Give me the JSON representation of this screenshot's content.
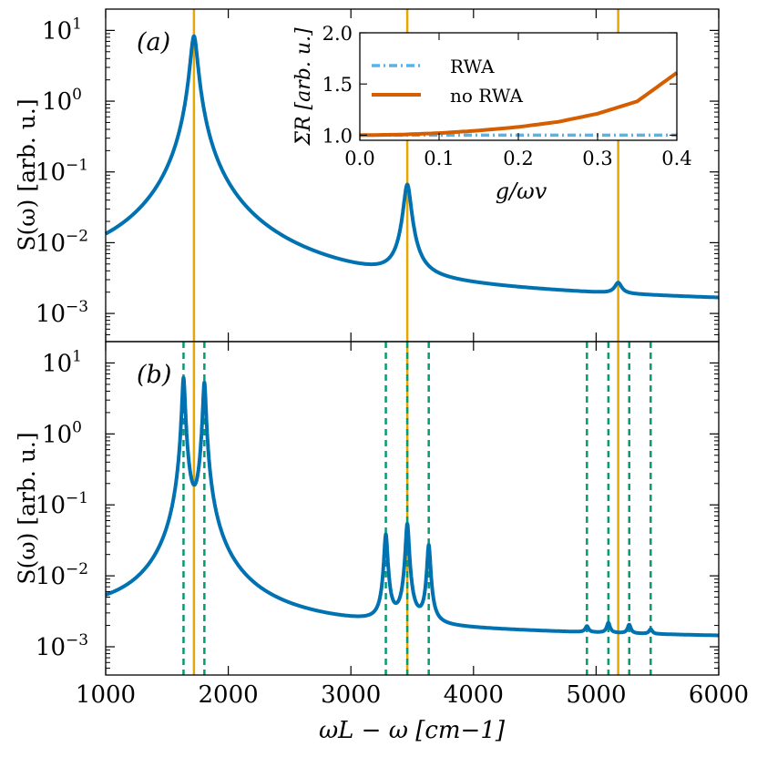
{
  "chart_data": [
    {
      "type": "line",
      "panel_label": "(a)",
      "ylabel": "S(ω) [arb. u.]",
      "yscale": "log",
      "ylim": [
        0.0004,
        20
      ],
      "xlim": [
        1000,
        6000
      ],
      "ytick_labels": [
        {
          "base": "10",
          "exp": "1",
          "value": 10
        },
        {
          "base": "10",
          "exp": "0",
          "value": 1
        },
        {
          "base": "10",
          "exp": "−1",
          "value": 0.1
        },
        {
          "base": "10",
          "exp": "−2",
          "value": 0.01
        },
        {
          "base": "10",
          "exp": "−3",
          "value": 0.001
        }
      ],
      "vertical_lines": {
        "color": "#e6a700",
        "style": "solid",
        "x": [
          1720,
          3460,
          5180
        ]
      },
      "series": [
        {
          "name": "S(ω)",
          "color": "#0072b2",
          "baseline": 0.0016,
          "peaks": [
            {
              "center": 1720,
              "amplitude": 8.3,
              "width": 26
            },
            {
              "center": 3460,
              "amplitude": 0.063,
              "width": 28
            },
            {
              "center": 5180,
              "amplitude": 0.0008,
              "width": 32
            }
          ]
        }
      ]
    },
    {
      "type": "line",
      "panel_label": "(b)",
      "ylabel": "S(ω) [arb. u.]",
      "xlabel": "ωL − ω [cm−1]",
      "yscale": "log",
      "ylim": [
        0.0004,
        20
      ],
      "xlim": [
        1000,
        6000
      ],
      "xticks": [
        1000,
        2000,
        3000,
        4000,
        5000,
        6000
      ],
      "ytick_labels": [
        {
          "base": "10",
          "exp": "1",
          "value": 10
        },
        {
          "base": "10",
          "exp": "0",
          "value": 1
        },
        {
          "base": "10",
          "exp": "−1",
          "value": 0.1
        },
        {
          "base": "10",
          "exp": "−2",
          "value": 0.01
        },
        {
          "base": "10",
          "exp": "−3",
          "value": 0.001
        }
      ],
      "vertical_lines": {
        "color": "#e6a700",
        "style": "solid",
        "x": [
          1720,
          3460,
          5180
        ]
      },
      "dashed_lines": {
        "color": "#009e73",
        "style": "dashed",
        "x": [
          1635,
          1805,
          3285,
          3460,
          3635,
          4925,
          5100,
          5270,
          5445
        ]
      },
      "series": [
        {
          "name": "S(ω)",
          "color": "#0072b2",
          "baseline": 0.0016,
          "peaks": [
            {
              "center": 1635,
              "amplitude": 6.2,
              "width": 11
            },
            {
              "center": 1805,
              "amplitude": 5.3,
              "width": 11
            },
            {
              "center": 3285,
              "amplitude": 0.036,
              "width": 13
            },
            {
              "center": 3460,
              "amplitude": 0.052,
              "width": 13
            },
            {
              "center": 3635,
              "amplitude": 0.025,
              "width": 13
            },
            {
              "center": 4925,
              "amplitude": 0.00035,
              "width": 15
            },
            {
              "center": 5100,
              "amplitude": 0.0006,
              "width": 15
            },
            {
              "center": 5270,
              "amplitude": 0.0005,
              "width": 15
            },
            {
              "center": 5445,
              "amplitude": 0.00025,
              "width": 15
            }
          ]
        }
      ]
    },
    {
      "type": "line",
      "role": "inset",
      "xlabel": "g/ωv",
      "ylabel": "ΣR [arb. u.]",
      "xlim": [
        0.0,
        0.4
      ],
      "ylim": [
        0.95,
        2.0
      ],
      "xticks": [
        0.0,
        0.1,
        0.2,
        0.3,
        0.4
      ],
      "xtick_labels": [
        "0.0",
        "0.1",
        "0.2",
        "0.3",
        "0.4"
      ],
      "yticks": [
        1.0,
        1.5,
        2.0
      ],
      "ytick_labels": [
        "1.0",
        "1.5",
        "2.0"
      ],
      "legend_position": "top-left",
      "series": [
        {
          "name": "RWA",
          "color": "#56b4e9",
          "style": "dashdot",
          "x": [
            0.0,
            0.1,
            0.2,
            0.3,
            0.4
          ],
          "y": [
            1.0,
            1.0,
            1.0,
            1.0,
            1.0
          ]
        },
        {
          "name": "no RWA",
          "color": "#d55e00",
          "style": "solid",
          "x": [
            0.0,
            0.05,
            0.1,
            0.15,
            0.2,
            0.25,
            0.3,
            0.35,
            0.4
          ],
          "y": [
            1.0,
            1.005,
            1.02,
            1.045,
            1.08,
            1.13,
            1.21,
            1.33,
            1.61
          ]
        }
      ]
    }
  ]
}
